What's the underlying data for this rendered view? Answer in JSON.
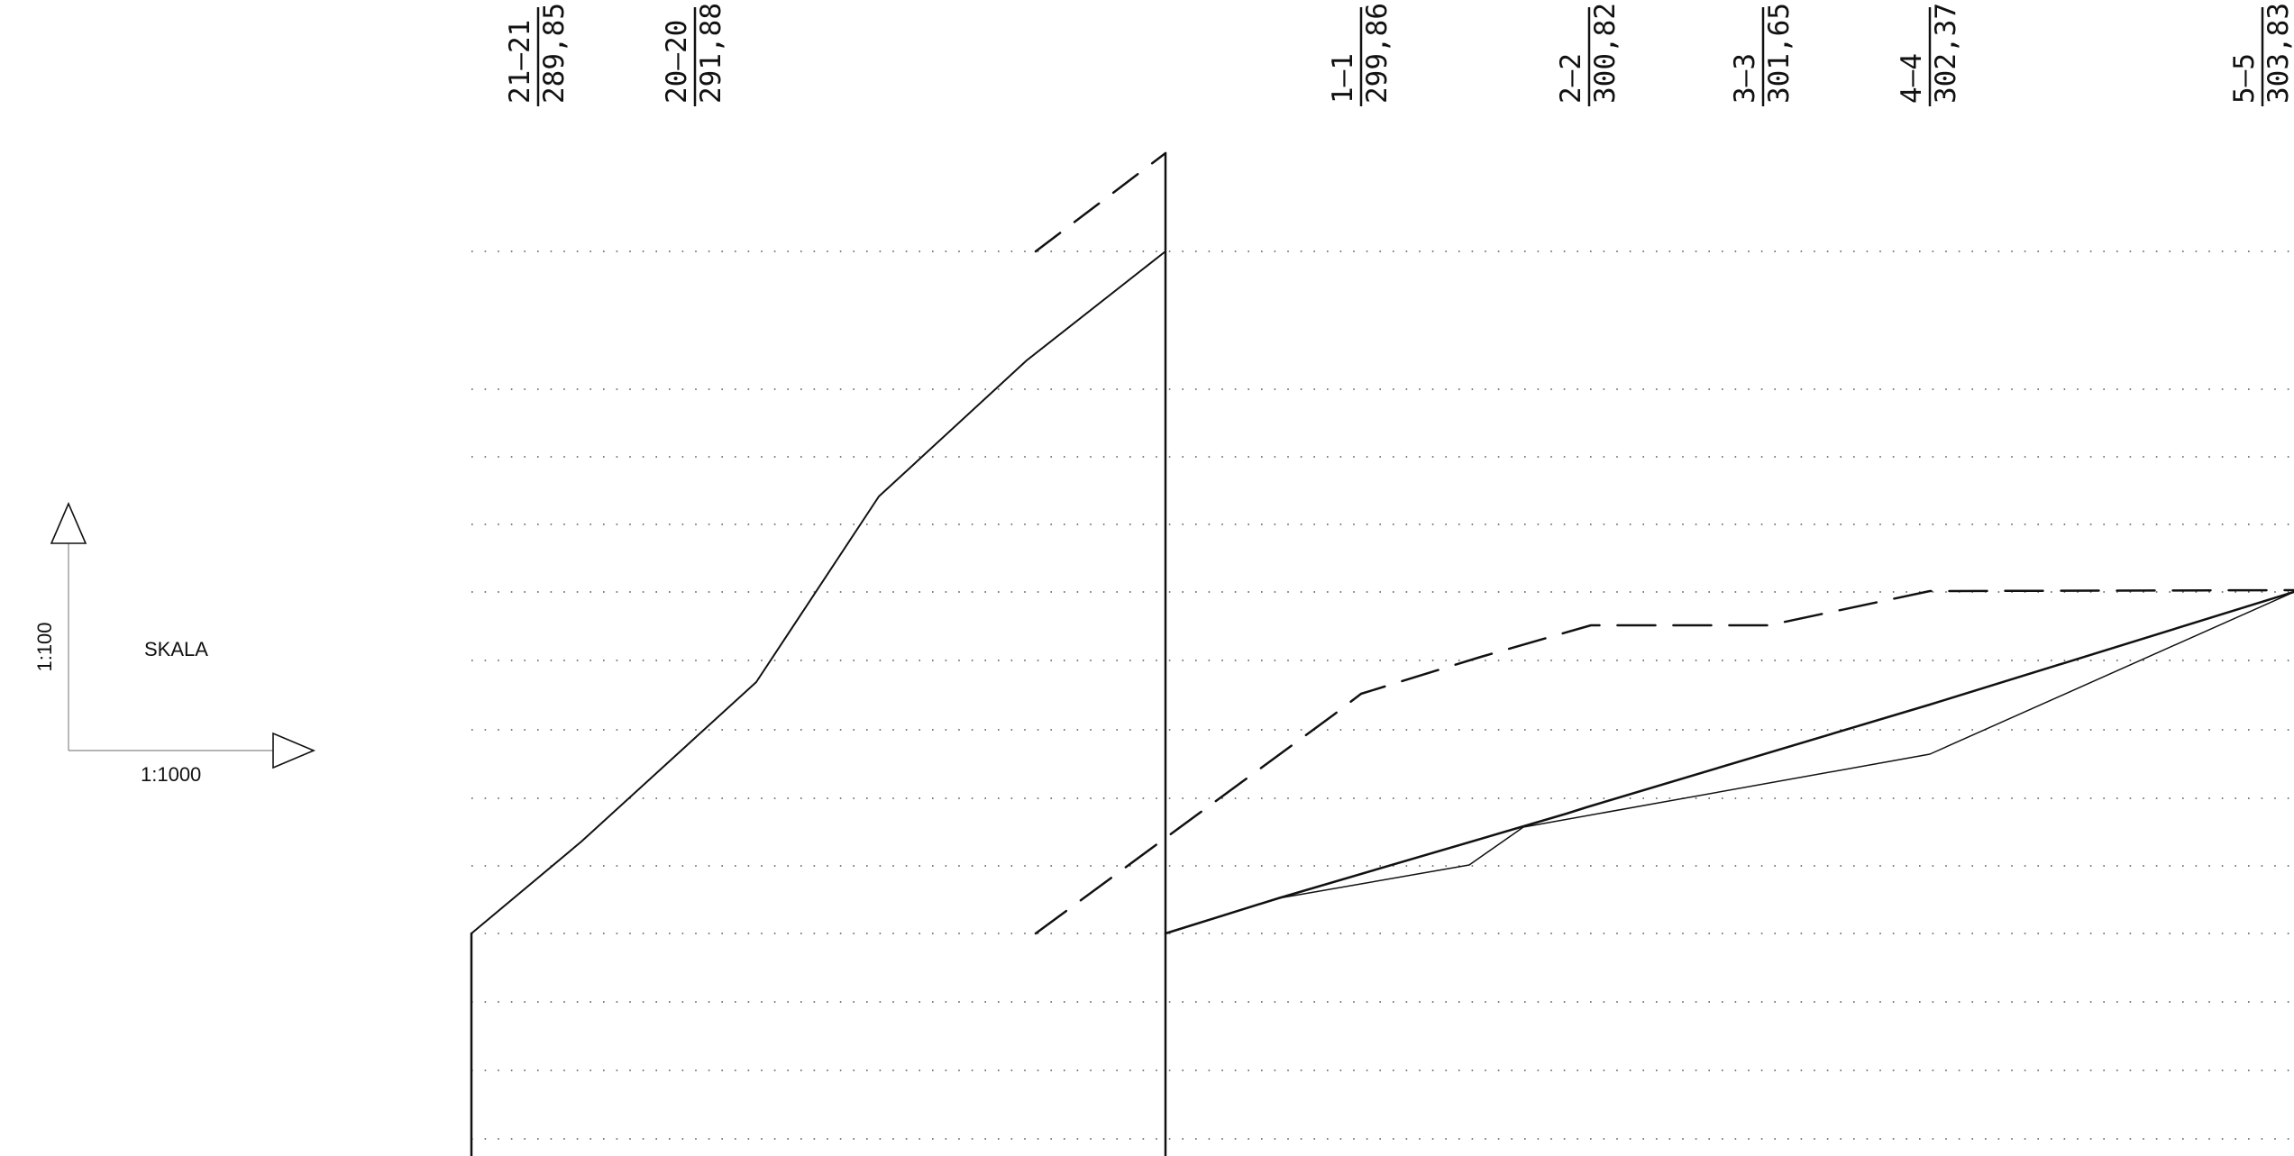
{
  "stations": [
    {
      "id": "21–21",
      "elevation": "289,85"
    },
    {
      "id": "20–20",
      "elevation": "291,88"
    },
    {
      "id": "1–1",
      "elevation": "299,86"
    },
    {
      "id": "2–2",
      "elevation": "300,82"
    },
    {
      "id": "3–3",
      "elevation": "301,65"
    },
    {
      "id": "4–4",
      "elevation": "302,37"
    },
    {
      "id": "5–5",
      "elevation": "303,83"
    }
  ],
  "scale": {
    "title": "SKALA",
    "vertical": "1:100",
    "horizontal": "1:1000"
  }
}
